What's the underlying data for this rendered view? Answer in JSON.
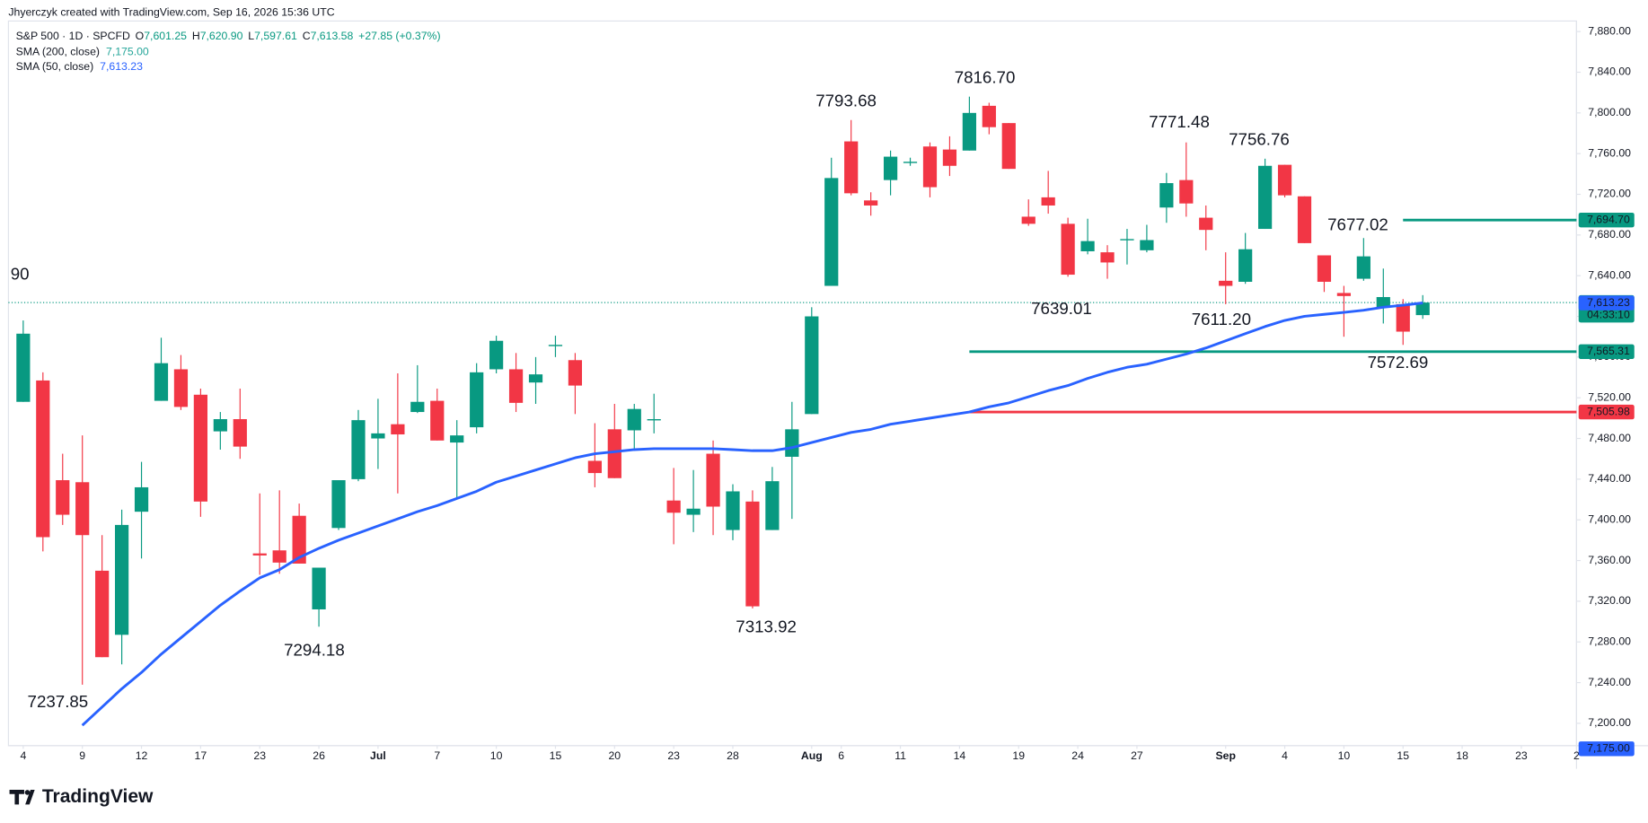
{
  "header": {
    "attribution": "Jhyerczyk created with TradingView.com, Sep 16, 2026 15:36 UTC",
    "symbol": "S&P 500 · 1D · SPCFD",
    "ohlc": [
      {
        "label": "O",
        "value": "7,601.25"
      },
      {
        "label": "H",
        "value": "7,620.90"
      },
      {
        "label": "L",
        "value": "7,597.61"
      },
      {
        "label": "C",
        "value": "7,613.58"
      }
    ],
    "change": "+27.85 (+0.37%)",
    "indicators": [
      {
        "name": "SMA (200, close)",
        "value": "7,175.00",
        "color": "#26a69a"
      },
      {
        "name": "SMA (50, close)",
        "value": "7,613.23",
        "color": "#2962ff"
      }
    ]
  },
  "footer": {
    "brand": "TradingView"
  },
  "chart_data": {
    "type": "candlestick",
    "ylim": [
      7178,
      7892
    ],
    "yticks": [
      {
        "value": 7200,
        "label": "7,200.00"
      },
      {
        "value": 7240,
        "label": "7,240.00"
      },
      {
        "value": 7280,
        "label": "7,280.00"
      },
      {
        "value": 7320,
        "label": "7,320.00"
      },
      {
        "value": 7360,
        "label": "7,360.00"
      },
      {
        "value": 7400,
        "label": "7,400.00"
      },
      {
        "value": 7440,
        "label": "7,440.00"
      },
      {
        "value": 7480,
        "label": "7,480.00"
      },
      {
        "value": 7520,
        "label": "7,520.00"
      },
      {
        "value": 7560,
        "label": "7,560.00"
      },
      {
        "value": 7600,
        "label": "7,600.00"
      },
      {
        "value": 7640,
        "label": "7,640.00"
      },
      {
        "value": 7680,
        "label": "7,680.00"
      },
      {
        "value": 7720,
        "label": "7,720.00"
      },
      {
        "value": 7760,
        "label": "7,760.00"
      },
      {
        "value": 7800,
        "label": "7,800.00"
      },
      {
        "value": 7840,
        "label": "7,840.00"
      },
      {
        "value": 7880,
        "label": "7,880.00"
      }
    ],
    "xlim": [
      -0.75,
      78.8
    ],
    "xticks": [
      {
        "value": 0,
        "label": "4"
      },
      {
        "value": 3,
        "label": "9"
      },
      {
        "value": 6,
        "label": "12"
      },
      {
        "value": 9,
        "label": "17"
      },
      {
        "value": 12,
        "label": "23"
      },
      {
        "value": 15,
        "label": "26"
      },
      {
        "value": 18,
        "label": "Jul"
      },
      {
        "value": 21,
        "label": "7"
      },
      {
        "value": 24,
        "label": "10"
      },
      {
        "value": 27,
        "label": "15"
      },
      {
        "value": 30,
        "label": "20"
      },
      {
        "value": 33,
        "label": "23"
      },
      {
        "value": 36,
        "label": "28"
      },
      {
        "value": 40,
        "label": "Aug"
      },
      {
        "value": 41.5,
        "label": "6"
      },
      {
        "value": 44.5,
        "label": "11"
      },
      {
        "value": 47.5,
        "label": "14"
      },
      {
        "value": 50.5,
        "label": "19"
      },
      {
        "value": 53.5,
        "label": "24"
      },
      {
        "value": 56.5,
        "label": "27"
      },
      {
        "value": 61,
        "label": "Sep"
      },
      {
        "value": 64,
        "label": "4"
      },
      {
        "value": 67,
        "label": "10"
      },
      {
        "value": 70,
        "label": "15"
      },
      {
        "value": 73,
        "label": "18"
      },
      {
        "value": 76,
        "label": "23"
      },
      {
        "value": 78.8,
        "label": "2"
      }
    ],
    "up_color": "#089981",
    "down_color": "#f23645",
    "candles": {
      "open": [
        7516,
        7537,
        7439,
        7437,
        7350,
        7287,
        7408,
        7517,
        7548,
        7523,
        7487,
        7499,
        7367,
        7370,
        7404,
        7312,
        7392,
        7440,
        7480,
        7494,
        7506,
        7517,
        7476,
        7491,
        7548,
        7548,
        7535,
        7571,
        7557,
        7458,
        7489,
        7488,
        7498,
        7419,
        7405,
        7465,
        7390,
        7418,
        7390,
        7462,
        7504,
        7630,
        7772,
        7714,
        7734,
        7751,
        7767,
        7764,
        7763,
        7807,
        7790,
        7698,
        7717,
        7691,
        7664,
        7663,
        7675,
        7665,
        7707,
        7734,
        7697,
        7635,
        7634,
        7686,
        7749,
        7718,
        7660,
        7623,
        7637,
        7609,
        7612,
        7601.25
      ],
      "high": [
        7596,
        7545,
        7465,
        7483,
        7385,
        7410,
        7457,
        7579,
        7562,
        7529,
        7506,
        7529,
        7426,
        7429,
        7416,
        7353,
        7439,
        7508,
        7519,
        7544,
        7552,
        7529,
        7498,
        7554,
        7581,
        7564,
        7560,
        7581,
        7564,
        7495,
        7514,
        7514,
        7524,
        7451,
        7449,
        7478,
        7435,
        7429,
        7452,
        7516,
        7609,
        7756,
        7793,
        7722,
        7763,
        7756,
        7771,
        7777,
        7816,
        7810,
        7790,
        7715,
        7743,
        7697,
        7696,
        7670,
        7686,
        7690,
        7741,
        7771,
        7709,
        7663,
        7682,
        7755,
        7749,
        7718,
        7660,
        7630,
        7677,
        7647,
        7617,
        7620.9
      ],
      "low": [
        7516,
        7369,
        7395,
        7238,
        7265,
        7258,
        7362,
        7517,
        7508,
        7403,
        7469,
        7460,
        7346,
        7347,
        7357,
        7295,
        7390,
        7438,
        7450,
        7426,
        7505,
        7478,
        7422,
        7485,
        7544,
        7506,
        7514,
        7560,
        7504,
        7432,
        7441,
        7469,
        7485,
        7376,
        7388,
        7385,
        7380,
        7313,
        7390,
        7401,
        7504,
        7630,
        7719,
        7699,
        7719,
        7748,
        7717,
        7738,
        7763,
        7779,
        7745,
        7689,
        7701,
        7639,
        7661,
        7637,
        7651,
        7663,
        7692,
        7698,
        7665,
        7612,
        7632,
        7686,
        7717,
        7672,
        7624,
        7580,
        7635,
        7593,
        7572,
        7597.61
      ],
      "close": [
        7583,
        7383,
        7405,
        7385,
        7265,
        7395,
        7432,
        7554,
        7511,
        7418,
        7499,
        7472,
        7365,
        7358,
        7357,
        7353,
        7439,
        7498,
        7485,
        7484,
        7516,
        7478,
        7483,
        7545,
        7576,
        7515,
        7543,
        7572,
        7532,
        7446,
        7441,
        7509,
        7499,
        7407,
        7411,
        7413,
        7428,
        7315,
        7438,
        7489,
        7600,
        7736,
        7721,
        7709,
        7757,
        7752,
        7727,
        7748,
        7800,
        7786,
        7745,
        7691,
        7709,
        7641,
        7674,
        7653,
        7676,
        7675,
        7731,
        7711,
        7685,
        7630,
        7666,
        7748,
        7719,
        7672,
        7634,
        7620,
        7659,
        7619,
        7585,
        7613.58
      ]
    },
    "series": [
      {
        "name": "SMA (50, close)",
        "color": "#2962ff",
        "values": [
          null,
          null,
          null,
          7198,
          7216,
          7234,
          7250,
          7268,
          7284,
          7300,
          7316,
          7330,
          7343,
          7351,
          7363,
          7372,
          7380,
          7387,
          7394,
          7401,
          7408,
          7414,
          7421,
          7428,
          7437,
          7443,
          7449,
          7455,
          7461,
          7465,
          7467,
          7469,
          7470,
          7470,
          7470,
          7470,
          7469,
          7468,
          7468,
          7471,
          7476,
          7481,
          7486,
          7489,
          7494,
          7497,
          7500,
          7503,
          7506,
          7511,
          7515,
          7521,
          7527,
          7532,
          7539,
          7545,
          7550,
          7553,
          7558,
          7563,
          7569,
          7576,
          7583,
          7590,
          7596,
          7600,
          7602,
          7604,
          7606,
          7609,
          7611,
          7613.23
        ]
      }
    ],
    "price_labels": [
      {
        "value": 7694.7,
        "label": "7,694.70",
        "color": "#089981"
      },
      {
        "value": 7613.58,
        "label": "7,613.58",
        "sub": "04:33:10",
        "color": "#089981"
      },
      {
        "value": 7613.23,
        "label": "7,613.23",
        "color": "#2962ff"
      },
      {
        "value": 7565.31,
        "label": "7,565.31",
        "color": "#089981"
      },
      {
        "value": 7505.98,
        "label": "7,505.98",
        "color": "#f23645"
      },
      {
        "value": 7175.0,
        "label": "7,175.00",
        "color": "#2962ff"
      }
    ],
    "annotations": [
      "90",
      "7793.68",
      "7816.70",
      "7771.48",
      "7756.76",
      "7677.02",
      "7639.01",
      "7611.20",
      "7572.69",
      "7313.92",
      "7294.18",
      "7237.85"
    ]
  }
}
